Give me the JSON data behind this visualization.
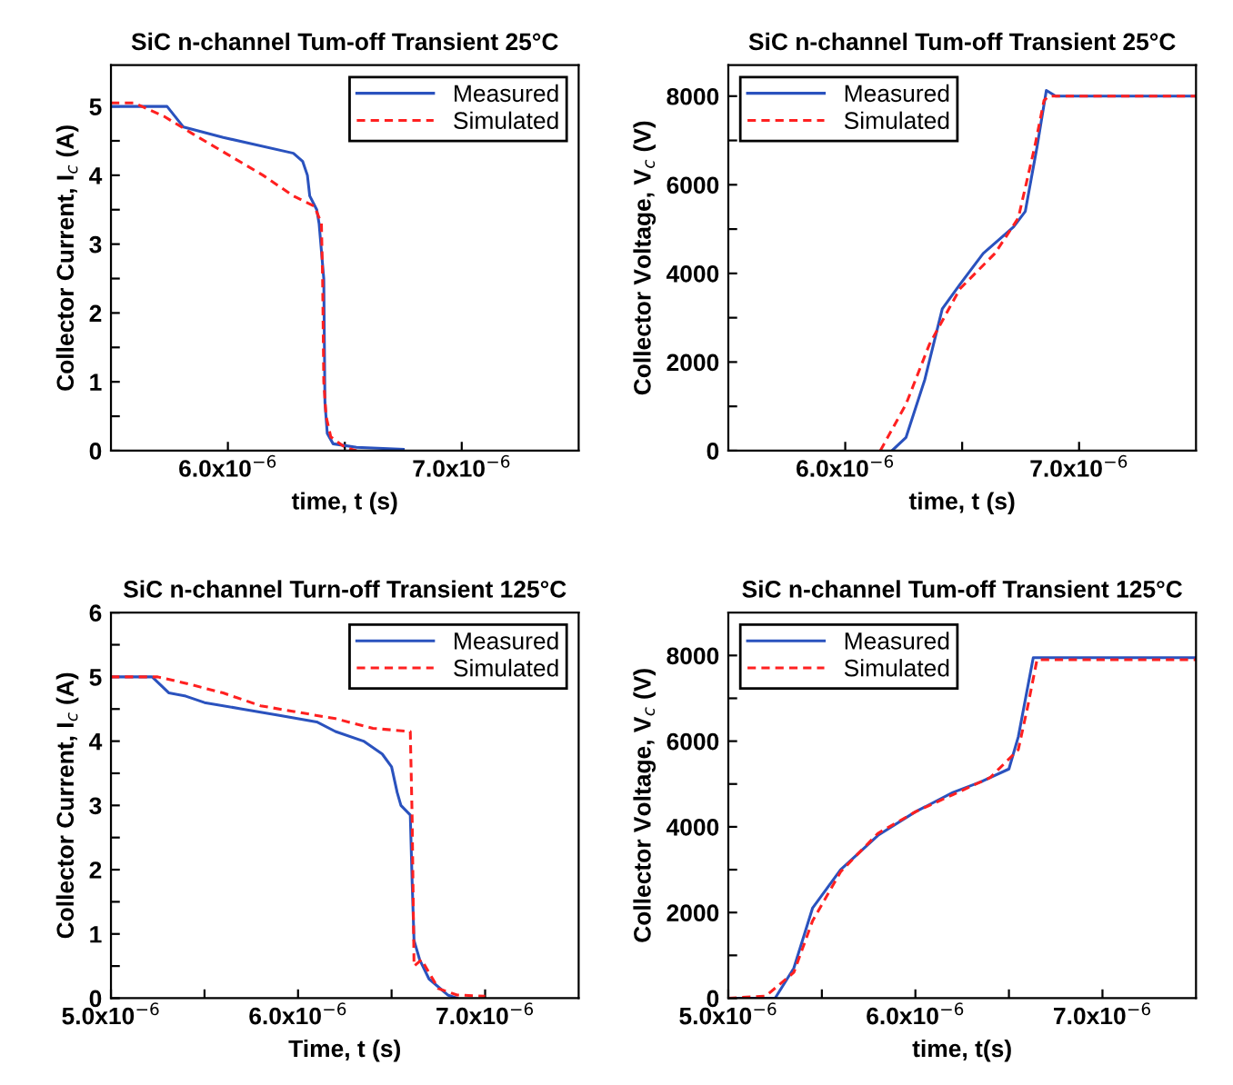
{
  "chart_data": [
    {
      "type": "line",
      "title": "SiC n-channel Tum-off Transient 25°C",
      "xlabel": "time, t (s)",
      "ylabel": "Collector Current, I$_{c}$ (A)",
      "legend": "top right",
      "grid": false,
      "xlim": [
        5.5e-06,
        7.5e-06
      ],
      "xticks": [
        {
          "value": 6e-06,
          "label": "6.0x10$^{−6}$"
        },
        {
          "value": 6.5e-06,
          "label": null
        },
        {
          "value": 7e-06,
          "label": "7.0x10$^{−6}$"
        }
      ],
      "ylim": [
        0,
        5.6
      ],
      "yticks": [
        0,
        {
          "value": 0.5,
          "label": null
        },
        1,
        {
          "value": 1.5,
          "label": null
        },
        2,
        {
          "value": 2.5,
          "label": null
        },
        3,
        {
          "value": 3.5,
          "label": null
        },
        4,
        {
          "value": 4.5,
          "label": null
        },
        5
      ],
      "series": [
        {
          "name": "Measured",
          "color": "#2a52be",
          "line_style": "solid",
          "x": [
            5.5e-06,
            5.74e-06,
            5.81e-06,
            5.98e-06,
            6.28e-06,
            6.32e-06,
            6.34e-06,
            6.35e-06,
            6.38e-06,
            6.39e-06,
            6.41e-06,
            6.415e-06,
            6.425e-06,
            6.45e-06,
            6.55e-06,
            6.75e-06
          ],
          "values": [
            5.0,
            5.0,
            4.7,
            4.55,
            4.32,
            4.2,
            4.0,
            3.7,
            3.5,
            3.3,
            2.5,
            0.7,
            0.25,
            0.1,
            0.05,
            0.02
          ]
        },
        {
          "name": "Simulated",
          "color": "#ff2020",
          "line_style": "dashed",
          "x": [
            5.5e-06,
            5.6e-06,
            5.73e-06,
            5.85e-06,
            6e-06,
            6.15e-06,
            6.28e-06,
            6.37e-06,
            6.4e-06,
            6.405e-06,
            6.41e-06,
            6.42e-06,
            6.44e-06,
            6.5e-06,
            6.55e-06
          ],
          "values": [
            5.05,
            5.05,
            4.85,
            4.6,
            4.3,
            4.0,
            3.7,
            3.55,
            3.3,
            2.5,
            1.0,
            0.5,
            0.2,
            0.05,
            0.0
          ]
        }
      ]
    },
    {
      "type": "line",
      "title": "SiC n-channel Tum-off Transient 25°C",
      "xlabel": "time, t (s)",
      "ylabel": "Collector Voltage, V$_{c}$ (V)",
      "legend": "top left",
      "grid": false,
      "xlim": [
        5.5e-06,
        7.5e-06
      ],
      "xticks": [
        {
          "value": 6e-06,
          "label": "6.0x10$^{−6}$"
        },
        {
          "value": 6.5e-06,
          "label": null
        },
        {
          "value": 7e-06,
          "label": "7.0x10$^{−6}$"
        }
      ],
      "ylim": [
        0,
        8700
      ],
      "yticks": [
        0,
        {
          "value": 1000,
          "label": null
        },
        2000,
        {
          "value": 3000,
          "label": null
        },
        4000,
        {
          "value": 5000,
          "label": null
        },
        6000,
        {
          "value": 7000,
          "label": null
        },
        8000
      ],
      "series": [
        {
          "name": "Measured",
          "color": "#2a52be",
          "line_style": "solid",
          "x": [
            6.2e-06,
            6.26e-06,
            6.34e-06,
            6.415e-06,
            6.49e-06,
            6.59e-06,
            6.72e-06,
            6.77e-06,
            6.82e-06,
            6.86e-06,
            6.9e-06,
            7.5e-06
          ],
          "values": [
            0,
            300,
            1600,
            3200,
            3750,
            4450,
            5050,
            5400,
            6850,
            8130,
            8000,
            8000
          ]
        },
        {
          "name": "Simulated",
          "color": "#ff2020",
          "line_style": "dashed",
          "x": [
            6.15e-06,
            6.26e-06,
            6.36e-06,
            6.49e-06,
            6.64e-06,
            6.74e-06,
            6.81e-06,
            6.85e-06,
            6.87e-06,
            7.5e-06
          ],
          "values": [
            0,
            1050,
            2400,
            3650,
            4450,
            5250,
            6850,
            7900,
            8000,
            8000
          ]
        }
      ]
    },
    {
      "type": "line",
      "title": "SiC n-channel Turn-off Transient 125°C",
      "xlabel": "Time, t (s)",
      "ylabel": "Collector Current, I$_{c}$ (A)",
      "legend": "top right",
      "grid": false,
      "xlim": [
        5e-06,
        7.5e-06
      ],
      "xticks": [
        {
          "value": 5e-06,
          "label": "5.0x10$^{−6}$"
        },
        {
          "value": 5.5e-06,
          "label": null
        },
        {
          "value": 6e-06,
          "label": "6.0x10$^{−6}$"
        },
        {
          "value": 6.5e-06,
          "label": null
        },
        {
          "value": 7e-06,
          "label": "7.0x10$^{−6}$"
        }
      ],
      "ylim": [
        0,
        6
      ],
      "yticks": [
        0,
        {
          "value": 0.5,
          "label": null
        },
        1,
        {
          "value": 1.5,
          "label": null
        },
        2,
        {
          "value": 2.5,
          "label": null
        },
        3,
        {
          "value": 3.5,
          "label": null
        },
        4,
        {
          "value": 4.5,
          "label": null
        },
        5,
        {
          "value": 5.5,
          "label": null
        },
        6
      ],
      "series": [
        {
          "name": "Measured",
          "color": "#2a52be",
          "line_style": "solid",
          "x": [
            5e-06,
            5.22e-06,
            5.31e-06,
            5.4e-06,
            5.5e-06,
            5.7e-06,
            5.9e-06,
            6.1e-06,
            6.2e-06,
            6.35e-06,
            6.45e-06,
            6.5e-06,
            6.53e-06,
            6.55e-06,
            6.6e-06,
            6.61e-06,
            6.62e-06,
            6.65e-06,
            6.7e-06,
            6.8e-06,
            6.85e-06
          ],
          "values": [
            5.0,
            5.0,
            4.75,
            4.7,
            4.6,
            4.5,
            4.4,
            4.3,
            4.15,
            4.0,
            3.8,
            3.6,
            3.2,
            3.0,
            2.85,
            1.8,
            0.9,
            0.6,
            0.3,
            0.05,
            0.0
          ]
        },
        {
          "name": "Simulated",
          "color": "#ff2020",
          "line_style": "dashed",
          "x": [
            5e-06,
            5.25e-06,
            5.4e-06,
            5.6e-06,
            5.8e-06,
            6e-06,
            6.2e-06,
            6.4e-06,
            6.6e-06,
            6.61e-06,
            6.62e-06,
            6.66e-06,
            6.75e-06,
            6.85e-06,
            7e-06
          ],
          "values": [
            5.0,
            5.0,
            4.9,
            4.75,
            4.55,
            4.45,
            4.35,
            4.2,
            4.15,
            2.8,
            0.5,
            0.6,
            0.15,
            0.05,
            0.03
          ]
        }
      ]
    },
    {
      "type": "line",
      "title": "SiC n-channel Tum-off Transient 125°C",
      "xlabel": "time, t(s)",
      "ylabel": "Collector Voltage, V$_{c}$ (V)",
      "legend": "top left",
      "grid": false,
      "xlim": [
        5e-06,
        7.5e-06
      ],
      "xticks": [
        {
          "value": 5e-06,
          "label": "5.0x10$^{−6}$"
        },
        {
          "value": 5.5e-06,
          "label": null
        },
        {
          "value": 6e-06,
          "label": "6.0x10$^{−6}$"
        },
        {
          "value": 6.5e-06,
          "label": null
        },
        {
          "value": 7e-06,
          "label": "7.0x10$^{−6}$"
        }
      ],
      "ylim": [
        0,
        9000
      ],
      "yticks": [
        0,
        {
          "value": 1000,
          "label": null
        },
        2000,
        {
          "value": 3000,
          "label": null
        },
        4000,
        {
          "value": 5000,
          "label": null
        },
        6000,
        {
          "value": 7000,
          "label": null
        },
        8000
      ],
      "series": [
        {
          "name": "Measured",
          "color": "#2a52be",
          "line_style": "solid",
          "x": [
            5e-06,
            5.25e-06,
            5.35e-06,
            5.45e-06,
            5.6e-06,
            5.8e-06,
            6e-06,
            6.2e-06,
            6.35e-06,
            6.5e-06,
            6.55e-06,
            6.63e-06,
            7.5e-06
          ],
          "values": [
            0,
            0,
            700,
            2100,
            3000,
            3800,
            4350,
            4800,
            5050,
            5350,
            6100,
            7950,
            7950
          ]
        },
        {
          "name": "Simulated",
          "color": "#ff2020",
          "line_style": "dashed",
          "x": [
            5e-06,
            5.2e-06,
            5.35e-06,
            5.45e-06,
            5.6e-06,
            5.8e-06,
            6e-06,
            6.2e-06,
            6.4e-06,
            6.55e-06,
            6.6e-06,
            6.65e-06,
            7.5e-06
          ],
          "values": [
            0,
            50,
            600,
            1800,
            2950,
            3850,
            4350,
            4750,
            5150,
            5800,
            6800,
            7900,
            7900
          ]
        }
      ]
    }
  ]
}
